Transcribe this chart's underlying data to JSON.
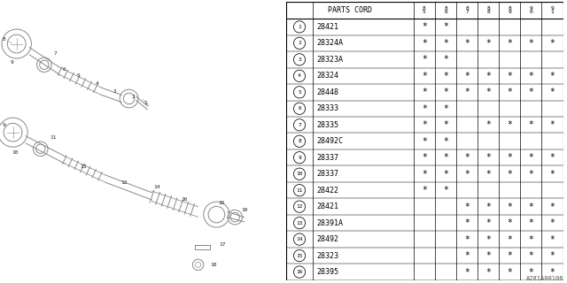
{
  "watermark": "A281A00106",
  "rows": [
    {
      "num": 1,
      "code": "28421",
      "marks": [
        1,
        1,
        0,
        0,
        0,
        0,
        0
      ]
    },
    {
      "num": 2,
      "code": "28324A",
      "marks": [
        1,
        1,
        1,
        1,
        1,
        1,
        1
      ]
    },
    {
      "num": 3,
      "code": "28323A",
      "marks": [
        1,
        1,
        0,
        0,
        0,
        0,
        0
      ]
    },
    {
      "num": 4,
      "code": "28324",
      "marks": [
        1,
        1,
        1,
        1,
        1,
        1,
        1
      ]
    },
    {
      "num": 5,
      "code": "28448",
      "marks": [
        1,
        1,
        1,
        1,
        1,
        1,
        1
      ]
    },
    {
      "num": 6,
      "code": "28333",
      "marks": [
        1,
        1,
        0,
        0,
        0,
        0,
        0
      ]
    },
    {
      "num": 7,
      "code": "28335",
      "marks": [
        1,
        1,
        0,
        1,
        1,
        1,
        1
      ]
    },
    {
      "num": 8,
      "code": "28492C",
      "marks": [
        1,
        1,
        0,
        0,
        0,
        0,
        0
      ]
    },
    {
      "num": 9,
      "code": "28337",
      "marks": [
        1,
        1,
        1,
        1,
        1,
        1,
        1
      ]
    },
    {
      "num": 10,
      "code": "28337",
      "marks": [
        1,
        1,
        1,
        1,
        1,
        1,
        1
      ]
    },
    {
      "num": 11,
      "code": "28422",
      "marks": [
        1,
        1,
        0,
        0,
        0,
        0,
        0
      ]
    },
    {
      "num": 12,
      "code": "28421",
      "marks": [
        0,
        0,
        1,
        1,
        1,
        1,
        1
      ]
    },
    {
      "num": 13,
      "code": "28391A",
      "marks": [
        0,
        0,
        1,
        1,
        1,
        1,
        1
      ]
    },
    {
      "num": 14,
      "code": "28492",
      "marks": [
        0,
        0,
        1,
        1,
        1,
        1,
        1
      ]
    },
    {
      "num": 15,
      "code": "28323",
      "marks": [
        0,
        0,
        1,
        1,
        1,
        1,
        1
      ]
    },
    {
      "num": 16,
      "code": "28395",
      "marks": [
        0,
        0,
        1,
        1,
        1,
        1,
        1
      ]
    }
  ],
  "year_labels": [
    "8\n5",
    "8\n6",
    "8\n7",
    "8\n8",
    "8\n9",
    "9\n0",
    "9\n1"
  ],
  "bg_color": "#ffffff",
  "lc": "#888888",
  "tc": "#000000"
}
